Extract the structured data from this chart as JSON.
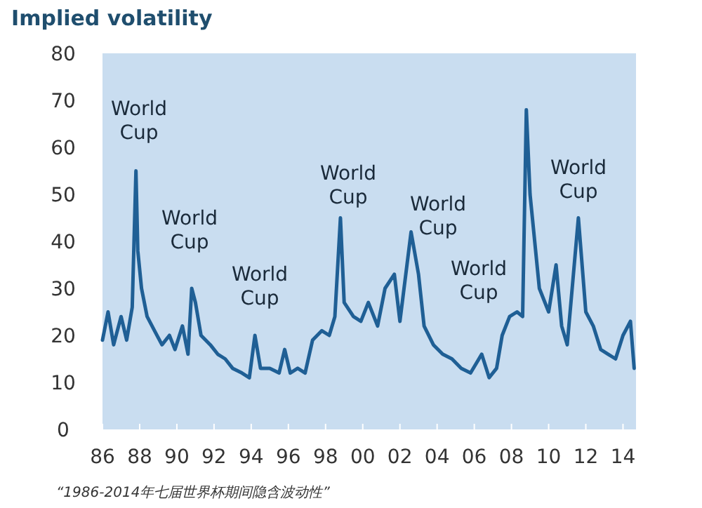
{
  "chart_data": {
    "type": "line",
    "title": "Implied volatility",
    "xlim": [
      1986,
      2014.7
    ],
    "ylim": [
      0,
      80
    ],
    "xticks": [
      {
        "value": 1986,
        "label": "86"
      },
      {
        "value": 1988,
        "label": "88"
      },
      {
        "value": 1990,
        "label": "90"
      },
      {
        "value": 1992,
        "label": "92"
      },
      {
        "value": 1994,
        "label": "94"
      },
      {
        "value": 1996,
        "label": "96"
      },
      {
        "value": 1998,
        "label": "98"
      },
      {
        "value": 2000,
        "label": "00"
      },
      {
        "value": 2002,
        "label": "02"
      },
      {
        "value": 2004,
        "label": "04"
      },
      {
        "value": 2006,
        "label": "06"
      },
      {
        "value": 2008,
        "label": "08"
      },
      {
        "value": 2010,
        "label": "10"
      },
      {
        "value": 2012,
        "label": "12"
      },
      {
        "value": 2014,
        "label": "14"
      }
    ],
    "yticks": [
      0,
      10,
      20,
      30,
      40,
      50,
      60,
      70,
      80
    ],
    "series": [
      {
        "color": "#1f5f95",
        "x": [
          1986.0,
          1986.3,
          1986.6,
          1987.0,
          1987.3,
          1987.6,
          1987.8,
          1987.9,
          1988.1,
          1988.4,
          1988.8,
          1989.2,
          1989.6,
          1989.9,
          1990.3,
          1990.6,
          1990.8,
          1991.0,
          1991.3,
          1991.8,
          1992.2,
          1992.6,
          1993.0,
          1993.5,
          1993.9,
          1994.2,
          1994.5,
          1995.0,
          1995.5,
          1995.8,
          1996.1,
          1996.5,
          1996.9,
          1997.3,
          1997.8,
          1998.2,
          1998.5,
          1998.8,
          1999.0,
          1999.5,
          1999.9,
          2000.3,
          2000.8,
          2001.2,
          2001.7,
          2002.0,
          2002.6,
          2003.0,
          2003.3,
          2003.8,
          2004.3,
          2004.8,
          2005.3,
          2005.8,
          2006.4,
          2006.8,
          2007.2,
          2007.5,
          2007.9,
          2008.3,
          2008.6,
          2008.8,
          2009.0,
          2009.5,
          2010.0,
          2010.4,
          2010.7,
          2011.0,
          2011.6,
          2012.0,
          2012.4,
          2012.8,
          2013.2,
          2013.6,
          2014.0,
          2014.4,
          2014.6
        ],
        "values": [
          19,
          25,
          18,
          24,
          19,
          26,
          55,
          38,
          30,
          24,
          21,
          18,
          20,
          17,
          22,
          16,
          30,
          27,
          20,
          18,
          16,
          15,
          13,
          12,
          11,
          20,
          13,
          13,
          12,
          17,
          12,
          13,
          12,
          19,
          21,
          20,
          24,
          45,
          27,
          24,
          23,
          27,
          22,
          30,
          33,
          23,
          42,
          33,
          22,
          18,
          16,
          15,
          13,
          12,
          16,
          11,
          13,
          20,
          24,
          25,
          24,
          68,
          50,
          30,
          25,
          35,
          22,
          18,
          45,
          25,
          22,
          17,
          16,
          15,
          20,
          23,
          13
        ]
      }
    ],
    "annotations": [
      "World Cup",
      "World Cup",
      "World Cup",
      "World Cup",
      "World Cup",
      "World Cup",
      "World Cup",
      "“1986-2014年七届世界杯期间隐含波动性”"
    ]
  }
}
